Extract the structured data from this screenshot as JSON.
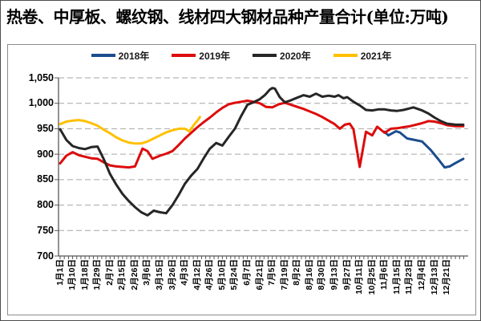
{
  "title": "热卷、中厚板、螺纹钢、线材四大钢材品种产量合计",
  "title_unit": "(单位:万吨)",
  "chart_data": {
    "type": "line",
    "title": "热卷、中厚板、螺纹钢、线材四大钢材品种产量合计",
    "unit_label": "(单位:万吨)",
    "ylabel": "",
    "xlabel": "",
    "ylim": [
      700,
      1050
    ],
    "ytick_interval": 50,
    "ytick_labels": [
      "700",
      "750",
      "800",
      "850",
      "900",
      "950",
      "1,000",
      "1,050"
    ],
    "grid": "horizontal-dashed",
    "legend_position": "top-center",
    "x_labels": [
      "1月1日",
      "1月10日",
      "1月18日",
      "1月29日",
      "2月7日",
      "2月15日",
      "2月26日",
      "3月6日",
      "3月15日",
      "3月26日",
      "4月3日",
      "4月12日",
      "4月26日",
      "5月10日",
      "5月24日",
      "6月7日",
      "6月21日",
      "7月5日",
      "7月19日",
      "8月2日",
      "8月16日",
      "8月30日",
      "9月13日",
      "9月27日",
      "10月11日",
      "10月25日",
      "11月6日",
      "11月15日",
      "11月23日",
      "12月4日",
      "12月13日",
      "12月21日"
    ],
    "legend": [
      {
        "label": "2018年",
        "color": "#1b4d8e"
      },
      {
        "label": "2019年",
        "color": "#dd0c0c"
      },
      {
        "label": "2020年",
        "color": "#262626"
      },
      {
        "label": "2021年",
        "color": "#ffc000"
      }
    ],
    "series": [
      {
        "name": "2018年",
        "color": "#1b4d8e",
        "points": [
          [
            26,
            944
          ],
          [
            26.3,
            937
          ],
          [
            26.9,
            945
          ],
          [
            27.2,
            943
          ],
          [
            27.8,
            931
          ],
          [
            28.4,
            928
          ],
          [
            29,
            925
          ],
          [
            29.7,
            908
          ],
          [
            30.3,
            890
          ],
          [
            30.8,
            874
          ],
          [
            31.2,
            876
          ],
          [
            31.7,
            883
          ],
          [
            32.3,
            891
          ]
        ]
      },
      {
        "name": "2019年",
        "color": "#dd0c0c",
        "points": [
          [
            0,
            882
          ],
          [
            0.5,
            897
          ],
          [
            1,
            904
          ],
          [
            1.5,
            898
          ],
          [
            2,
            895
          ],
          [
            2.5,
            892
          ],
          [
            3,
            891
          ],
          [
            3.5,
            884
          ],
          [
            4,
            878
          ],
          [
            4.5,
            876
          ],
          [
            5,
            875
          ],
          [
            5.5,
            874
          ],
          [
            6,
            876
          ],
          [
            6.6,
            911
          ],
          [
            7,
            906
          ],
          [
            7.4,
            891
          ],
          [
            8,
            897
          ],
          [
            8.5,
            901
          ],
          [
            9,
            906
          ],
          [
            9.5,
            918
          ],
          [
            10,
            931
          ],
          [
            10.5,
            942
          ],
          [
            11,
            953
          ],
          [
            11.5,
            963
          ],
          [
            12,
            972
          ],
          [
            12.5,
            982
          ],
          [
            13,
            991
          ],
          [
            13.5,
            998
          ],
          [
            14,
            1001
          ],
          [
            14.5,
            1003
          ],
          [
            15,
            1005
          ],
          [
            15.5,
            1003
          ],
          [
            16,
            1000
          ],
          [
            16.5,
            993
          ],
          [
            17,
            992
          ],
          [
            17.5,
            998
          ],
          [
            18,
            1001
          ],
          [
            18.5,
            997
          ],
          [
            19,
            993
          ],
          [
            19.5,
            989
          ],
          [
            20,
            984
          ],
          [
            20.5,
            979
          ],
          [
            21,
            973
          ],
          [
            21.5,
            966
          ],
          [
            22,
            959
          ],
          [
            22.4,
            950
          ],
          [
            22.8,
            958
          ],
          [
            23.2,
            960
          ],
          [
            23.5,
            949
          ],
          [
            24,
            875
          ],
          [
            24.5,
            944
          ],
          [
            25,
            937
          ],
          [
            25.4,
            954
          ],
          [
            26,
            942
          ],
          [
            26.5,
            950
          ],
          [
            27,
            951
          ],
          [
            27.5,
            953
          ],
          [
            28,
            955
          ],
          [
            28.5,
            958
          ],
          [
            29,
            961
          ],
          [
            29.5,
            965
          ],
          [
            30,
            964
          ],
          [
            30.5,
            961
          ],
          [
            31,
            957
          ],
          [
            31.7,
            955
          ],
          [
            32.3,
            955
          ]
        ]
      },
      {
        "name": "2020年",
        "color": "#262626",
        "points": [
          [
            0,
            949
          ],
          [
            0.5,
            928
          ],
          [
            1,
            916
          ],
          [
            1.5,
            912
          ],
          [
            2,
            910
          ],
          [
            2.5,
            914
          ],
          [
            3,
            915
          ],
          [
            3.5,
            890
          ],
          [
            4,
            861
          ],
          [
            4.5,
            840
          ],
          [
            5,
            822
          ],
          [
            5.5,
            808
          ],
          [
            6,
            796
          ],
          [
            6.5,
            786
          ],
          [
            7,
            780
          ],
          [
            7.5,
            789
          ],
          [
            8,
            786
          ],
          [
            8.5,
            784
          ],
          [
            9,
            800
          ],
          [
            9.5,
            820
          ],
          [
            10,
            842
          ],
          [
            10.5,
            858
          ],
          [
            11,
            871
          ],
          [
            11.5,
            892
          ],
          [
            12,
            911
          ],
          [
            12.5,
            922
          ],
          [
            13,
            917
          ],
          [
            13.5,
            934
          ],
          [
            14,
            950
          ],
          [
            14.5,
            975
          ],
          [
            15,
            997
          ],
          [
            15.5,
            1002
          ],
          [
            16,
            1008
          ],
          [
            16.4,
            1016
          ],
          [
            16.8,
            1027
          ],
          [
            17,
            1030
          ],
          [
            17.2,
            1029
          ],
          [
            17.6,
            1012
          ],
          [
            18,
            1002
          ],
          [
            18.4,
            1005
          ],
          [
            19,
            1011
          ],
          [
            19.5,
            1016
          ],
          [
            20,
            1013
          ],
          [
            20.5,
            1019
          ],
          [
            21,
            1013
          ],
          [
            21.5,
            1015
          ],
          [
            22,
            1013
          ],
          [
            22.3,
            1016
          ],
          [
            22.7,
            1010
          ],
          [
            23,
            1012
          ],
          [
            23.5,
            1003
          ],
          [
            24,
            996
          ],
          [
            24.5,
            987
          ],
          [
            25,
            986
          ],
          [
            25.5,
            988
          ],
          [
            26,
            988
          ],
          [
            26.5,
            986
          ],
          [
            27,
            985
          ],
          [
            27.5,
            987
          ],
          [
            28,
            990
          ],
          [
            28.3,
            992
          ],
          [
            29,
            986
          ],
          [
            29.5,
            980
          ],
          [
            30,
            972
          ],
          [
            30.5,
            965
          ],
          [
            31,
            960
          ],
          [
            31.7,
            958
          ],
          [
            32.3,
            958
          ]
        ]
      },
      {
        "name": "2021年",
        "color": "#ffc000",
        "points": [
          [
            0,
            959
          ],
          [
            0.5,
            964
          ],
          [
            1,
            966
          ],
          [
            1.5,
            967
          ],
          [
            2,
            965
          ],
          [
            2.5,
            961
          ],
          [
            3,
            956
          ],
          [
            3.5,
            948
          ],
          [
            4,
            941
          ],
          [
            4.5,
            933
          ],
          [
            5,
            927
          ],
          [
            5.5,
            923
          ],
          [
            6,
            921
          ],
          [
            6.5,
            921
          ],
          [
            7,
            925
          ],
          [
            7.5,
            931
          ],
          [
            8,
            937
          ],
          [
            8.5,
            943
          ],
          [
            9,
            947
          ],
          [
            9.5,
            950
          ],
          [
            10,
            950
          ],
          [
            10.35,
            945
          ],
          [
            10.7,
            957
          ],
          [
            11,
            966
          ],
          [
            11.2,
            973
          ]
        ]
      }
    ]
  }
}
